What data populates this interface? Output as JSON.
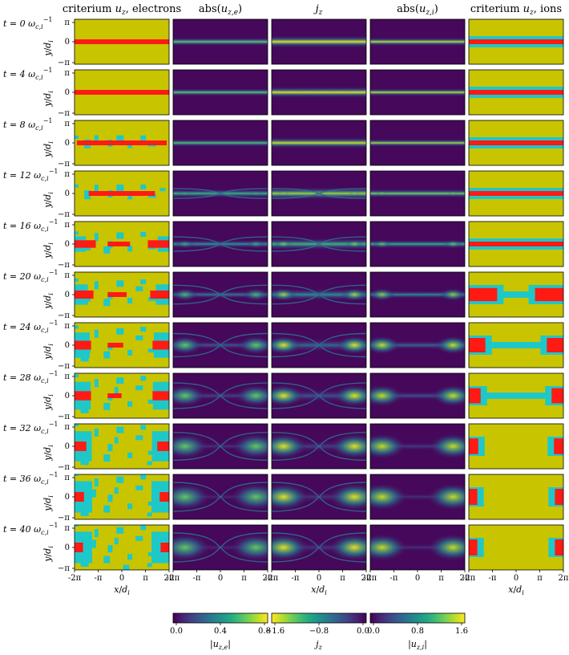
{
  "chart_data": {
    "type": "heatmap",
    "title": "",
    "columns": [
      {
        "key": "crit_e",
        "title": "criterium u_z, electrons",
        "title_main": "criterium ",
        "title_var": "u",
        "title_sub": "z",
        "title_tail": ", electrons"
      },
      {
        "key": "abs_uze",
        "title": "abs(u_z,e)",
        "title_main": "abs(",
        "title_var": "u",
        "title_sub": "z,e",
        "title_tail": ")"
      },
      {
        "key": "jz",
        "title": "j_z",
        "title_main": "",
        "title_var": "j",
        "title_sub": "z",
        "title_tail": ""
      },
      {
        "key": "abs_uzi",
        "title": "abs(u_z,i)",
        "title_main": "abs(",
        "title_var": "u",
        "title_sub": "z,i",
        "title_tail": ")"
      },
      {
        "key": "crit_i",
        "title": "criterium u_z, ions",
        "title_main": "criterium ",
        "title_var": "u",
        "title_sub": "z",
        "title_tail": ", ions"
      }
    ],
    "rows": [
      {
        "t": 0,
        "label": "t = 0 ω_c,i^-1",
        "label_prefix": "t = 0 ",
        "label_var": "ω",
        "label_sub": "c,i",
        "label_sup": "−1"
      },
      {
        "t": 4,
        "label": "t = 4 ω_c,i^-1",
        "label_prefix": "t = 4 ",
        "label_var": "ω",
        "label_sub": "c,i",
        "label_sup": "−1"
      },
      {
        "t": 8,
        "label": "t = 8 ω_c,i^-1",
        "label_prefix": "t = 8 ",
        "label_var": "ω",
        "label_sub": "c,i",
        "label_sup": "−1"
      },
      {
        "t": 12,
        "label": "t = 12 ω_c,i^-1",
        "label_prefix": "t = 12 ",
        "label_var": "ω",
        "label_sub": "c,i",
        "label_sup": "−1"
      },
      {
        "t": 16,
        "label": "t = 16 ω_c,i^-1",
        "label_prefix": "t = 16 ",
        "label_var": "ω",
        "label_sub": "c,i",
        "label_sup": "−1"
      },
      {
        "t": 20,
        "label": "t = 20 ω_c,i^-1",
        "label_prefix": "t = 20 ",
        "label_var": "ω",
        "label_sub": "c,i",
        "label_sup": "−1"
      },
      {
        "t": 24,
        "label": "t = 24 ω_c,i^-1",
        "label_prefix": "t = 24 ",
        "label_var": "ω",
        "label_sub": "c,i",
        "label_sup": "−1"
      },
      {
        "t": 28,
        "label": "t = 28 ω_c,i^-1",
        "label_prefix": "t = 28 ",
        "label_var": "ω",
        "label_sub": "c,i",
        "label_sup": "−1"
      },
      {
        "t": 32,
        "label": "t = 32 ω_c,i^-1",
        "label_prefix": "t = 32 ",
        "label_var": "ω",
        "label_sub": "c,i",
        "label_sup": "−1"
      },
      {
        "t": 36,
        "label": "t = 36 ω_c,i^-1",
        "label_prefix": "t = 36 ",
        "label_var": "ω",
        "label_sub": "c,i",
        "label_sup": "−1"
      },
      {
        "t": 40,
        "label": "t = 40 ω_c,i^-1",
        "label_prefix": "t = 40 ",
        "label_var": "ω",
        "label_sub": "c,i",
        "label_sup": "−1"
      }
    ],
    "xlabel": "x/d_i",
    "ylabel": "y/d_i",
    "xlabel_var": "x",
    "xlabel_den": "d",
    "xlabel_sub": "i",
    "ylabel_var": "y",
    "ylabel_den": "d",
    "ylabel_sub": "i",
    "x_ticks": [
      "-2π",
      "-π",
      "0",
      "π",
      "2π"
    ],
    "y_ticks": [
      "π",
      "0",
      "−π"
    ],
    "xlim": [
      -6.2832,
      6.2832
    ],
    "ylim": [
      -3.1416,
      3.1416
    ],
    "colorbars": [
      {
        "label": "|u_z,e|",
        "label_var": "u",
        "label_sub": "z,e",
        "abs": true,
        "range": [
          0.0,
          0.8
        ],
        "ticks": [
          "0.0",
          "0.4",
          "0.8"
        ],
        "reverse": false
      },
      {
        "label": "j_z",
        "label_var": "j",
        "label_sub": "z",
        "abs": false,
        "range": [
          -1.6,
          0.0
        ],
        "ticks": [
          "−1.6",
          "−0.8",
          "0.0"
        ],
        "reverse": true
      },
      {
        "label": "|u_z,i|",
        "label_var": "u",
        "label_sub": "z,i",
        "abs": true,
        "range": [
          0.0,
          1.6
        ],
        "ticks": [
          "0.0",
          "0.8",
          "1.6"
        ],
        "reverse": false
      }
    ],
    "criterium_colors": {
      "background": "#c8c400",
      "mixed": "#1ec8c8",
      "core": "#ff1a14"
    },
    "colormap": "viridis",
    "sheet_width": [
      0.28,
      0.26,
      0.26,
      0.3,
      0.28,
      0.28,
      0.32,
      0.32,
      0.32,
      0.32,
      0.32
    ],
    "island_strength": [
      0.0,
      0.0,
      0.05,
      0.15,
      0.35,
      0.55,
      0.75,
      0.85,
      0.95,
      1.0,
      1.0
    ],
    "electron_core_extent": [
      1.0,
      1.0,
      0.95,
      0.7,
      0.45,
      0.4,
      0.35,
      0.35,
      0.25,
      0.2,
      0.18
    ],
    "ion_core_extent": [
      1.0,
      1.0,
      1.0,
      1.0,
      1.0,
      0.6,
      0.35,
      0.25,
      0.2,
      0.18,
      0.18
    ]
  }
}
